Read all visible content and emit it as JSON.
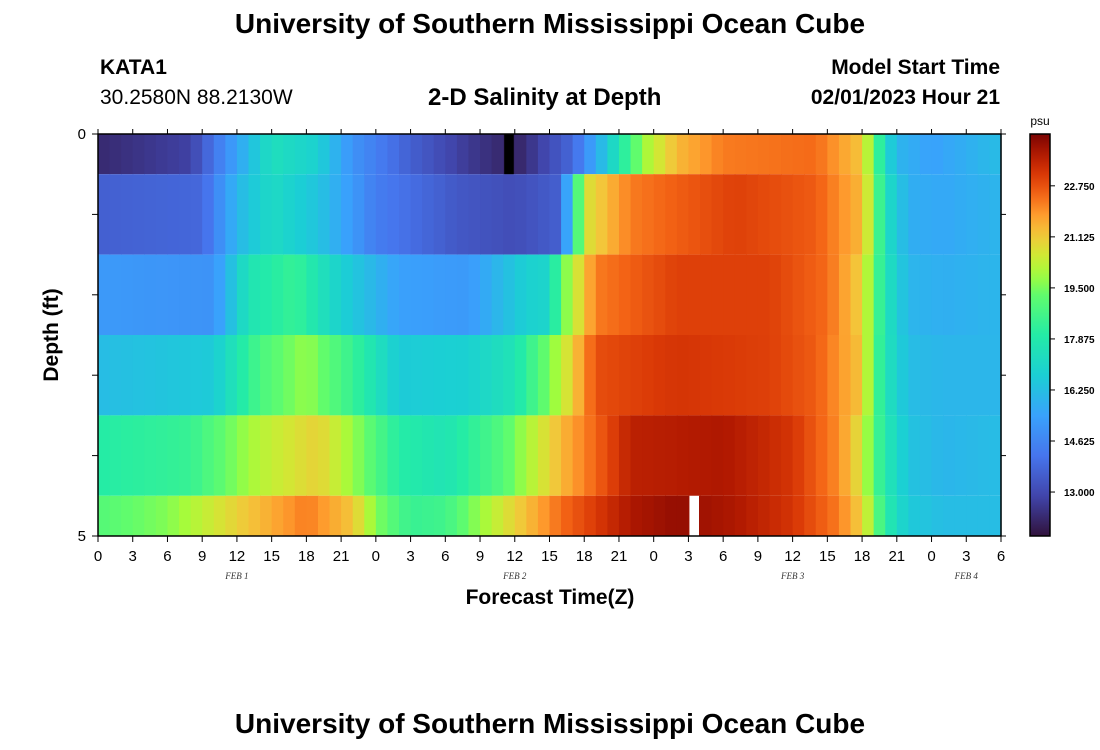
{
  "header": {
    "title": "University of Southern Mississippi Ocean Cube",
    "station_id": "KATA1",
    "coords": "30.2580N  88.2130W",
    "plot_title": "2-D Salinity at Depth",
    "model_start_label": "Model Start Time",
    "model_start_value": "02/01/2023 Hour 21"
  },
  "footer": {
    "title": "University of Southern Mississippi Ocean Cube"
  },
  "colorbar": {
    "unit": "psu",
    "min": 11.6,
    "max": 24.4,
    "ticks": [
      22.75,
      21.125,
      19.5,
      17.875,
      16.25,
      14.625,
      13.0
    ],
    "tick_labels": [
      "22.750",
      "21.125",
      "19.500",
      "17.875",
      "16.250",
      "14.625",
      "13.000"
    ]
  },
  "chart_data": {
    "type": "heatmap",
    "title": "2-D Salinity at Depth",
    "xlabel": "Forecast Time(Z)",
    "ylabel": "Depth (ft)",
    "units": "psu",
    "x_start_hour": 0,
    "x_end_hour": 78,
    "x_step_hours": 1,
    "x_tick_labels": [
      "0",
      "3",
      "6",
      "9",
      "12",
      "15",
      "18",
      "21",
      "0",
      "3",
      "6",
      "9",
      "12",
      "15",
      "18",
      "21",
      "0",
      "3",
      "6",
      "9",
      "12",
      "15",
      "18",
      "21",
      "0",
      "3",
      "6"
    ],
    "y_range": [
      0,
      5
    ],
    "y_tick_labels": [
      "0",
      "5"
    ],
    "date_labels": [
      {
        "text": "FEB 1",
        "hour": 12
      },
      {
        "text": "FEB 2",
        "hour": 36
      },
      {
        "text": "FEB 3",
        "hour": 60
      },
      {
        "text": "FEB 4",
        "hour": 75
      }
    ],
    "missing": [
      {
        "layer": 0,
        "hour": 35,
        "color": "#000000"
      },
      {
        "layer": 5,
        "hour": 51,
        "color": "#ffffff"
      }
    ],
    "layers": [
      {
        "depth_from": 0,
        "depth_to": 0.5,
        "anchors": [
          [
            0,
            12.2
          ],
          [
            8,
            12.8
          ],
          [
            12,
            15.5
          ],
          [
            15,
            17.4
          ],
          [
            19,
            16.8
          ],
          [
            22,
            15.0
          ],
          [
            27,
            13.6
          ],
          [
            32,
            12.6
          ],
          [
            36,
            12.0
          ],
          [
            41,
            13.8
          ],
          [
            44,
            16.6
          ],
          [
            47,
            19.8
          ],
          [
            50,
            21.4
          ],
          [
            54,
            22.2
          ],
          [
            62,
            22.4
          ],
          [
            66,
            21.2
          ],
          [
            67,
            19.2
          ],
          [
            68,
            17.2
          ],
          [
            69,
            16.0
          ],
          [
            72,
            15.4
          ],
          [
            78,
            16.2
          ]
        ]
      },
      {
        "depth_from": 0.5,
        "depth_to": 1.5,
        "anchors": [
          [
            0,
            13.6
          ],
          [
            9,
            13.8
          ],
          [
            12,
            16.0
          ],
          [
            15,
            17.2
          ],
          [
            19,
            16.4
          ],
          [
            24,
            14.4
          ],
          [
            31,
            13.4
          ],
          [
            36,
            13.1
          ],
          [
            40,
            13.6
          ],
          [
            41,
            17.4
          ],
          [
            42,
            20.6
          ],
          [
            46,
            22.2
          ],
          [
            55,
            23.0
          ],
          [
            62,
            22.6
          ],
          [
            66,
            21.4
          ],
          [
            67,
            19.6
          ],
          [
            68,
            17.4
          ],
          [
            70,
            15.8
          ],
          [
            73,
            15.6
          ],
          [
            78,
            16.0
          ]
        ]
      },
      {
        "depth_from": 1.5,
        "depth_to": 2.5,
        "anchors": [
          [
            0,
            15.2
          ],
          [
            10,
            15.0
          ],
          [
            13,
            17.6
          ],
          [
            17,
            18.4
          ],
          [
            21,
            16.8
          ],
          [
            26,
            15.4
          ],
          [
            32,
            15.2
          ],
          [
            37,
            16.8
          ],
          [
            39,
            17.0
          ],
          [
            40,
            19.2
          ],
          [
            43,
            22.2
          ],
          [
            50,
            23.0
          ],
          [
            58,
            23.0
          ],
          [
            63,
            22.4
          ],
          [
            66,
            21.0
          ],
          [
            67,
            19.2
          ],
          [
            68,
            17.6
          ],
          [
            70,
            16.0
          ],
          [
            73,
            15.8
          ],
          [
            78,
            16.0
          ]
        ]
      },
      {
        "depth_from": 2.5,
        "depth_to": 3.5,
        "anchors": [
          [
            0,
            16.2
          ],
          [
            10,
            16.6
          ],
          [
            14,
            18.8
          ],
          [
            18,
            19.8
          ],
          [
            22,
            18.4
          ],
          [
            26,
            16.6
          ],
          [
            32,
            16.8
          ],
          [
            36,
            17.6
          ],
          [
            40,
            20.2
          ],
          [
            43,
            22.8
          ],
          [
            50,
            23.2
          ],
          [
            58,
            23.0
          ],
          [
            62,
            22.6
          ],
          [
            66,
            21.2
          ],
          [
            67,
            19.0
          ],
          [
            68,
            17.6
          ],
          [
            70,
            16.2
          ],
          [
            73,
            16.0
          ],
          [
            78,
            16.0
          ]
        ]
      },
      {
        "depth_from": 3.5,
        "depth_to": 4.5,
        "anchors": [
          [
            0,
            18.0
          ],
          [
            8,
            18.4
          ],
          [
            14,
            20.2
          ],
          [
            19,
            21.0
          ],
          [
            22,
            19.8
          ],
          [
            26,
            18.0
          ],
          [
            30,
            17.6
          ],
          [
            35,
            19.0
          ],
          [
            40,
            21.4
          ],
          [
            46,
            23.6
          ],
          [
            54,
            23.8
          ],
          [
            60,
            23.2
          ],
          [
            64,
            22.0
          ],
          [
            66,
            20.6
          ],
          [
            67,
            19.0
          ],
          [
            68,
            17.8
          ],
          [
            70,
            16.4
          ],
          [
            73,
            16.0
          ],
          [
            78,
            16.2
          ]
        ]
      },
      {
        "depth_from": 4.5,
        "depth_to": 5.0,
        "anchors": [
          [
            0,
            19.0
          ],
          [
            6,
            19.6
          ],
          [
            12,
            21.0
          ],
          [
            18,
            22.2
          ],
          [
            22,
            21.2
          ],
          [
            24,
            19.6
          ],
          [
            27,
            18.4
          ],
          [
            30,
            18.6
          ],
          [
            35,
            20.6
          ],
          [
            40,
            22.4
          ],
          [
            46,
            23.8
          ],
          [
            50,
            24.1
          ],
          [
            55,
            23.8
          ],
          [
            60,
            23.2
          ],
          [
            64,
            22.2
          ],
          [
            66,
            21.0
          ],
          [
            67,
            19.6
          ],
          [
            68,
            18.0
          ],
          [
            70,
            16.6
          ],
          [
            73,
            16.2
          ],
          [
            78,
            16.2
          ]
        ]
      }
    ]
  }
}
